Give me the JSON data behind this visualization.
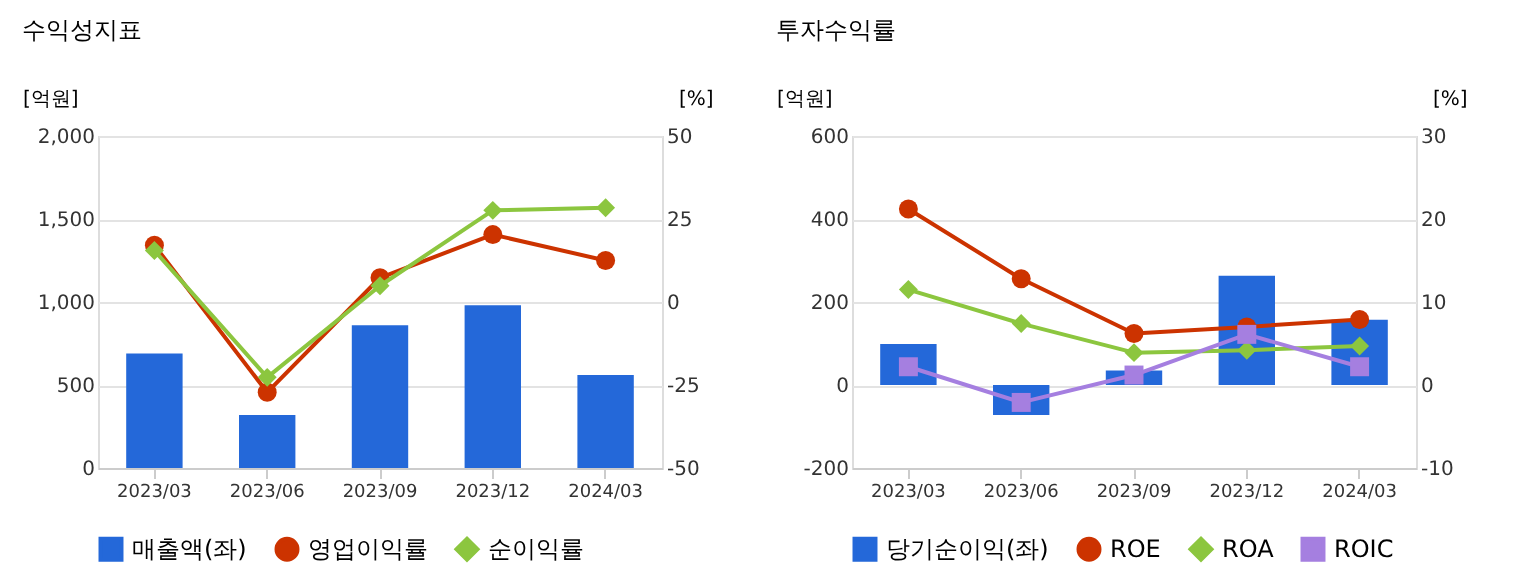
{
  "chart_data": [
    {
      "type": "bar",
      "title": "수익성지표",
      "ylabel": "[억원]",
      "y2label": "[%]",
      "categories": [
        "2023/03",
        "2023/06",
        "2023/09",
        "2023/12",
        "2024/03"
      ],
      "ylim": [
        0,
        2000
      ],
      "yticks": [
        {
          "value": 0,
          "label": "0"
        },
        {
          "value": 500,
          "label": "500"
        },
        {
          "value": 1000,
          "label": "1,000"
        },
        {
          "value": 1500,
          "label": "1,500"
        },
        {
          "value": 2000,
          "label": "2,000"
        }
      ],
      "y2lim": [
        -50,
        50
      ],
      "y2ticks": [
        -50,
        -25,
        0,
        25,
        50
      ],
      "grid": "y",
      "legend": "bottom",
      "series": [
        {
          "name": "매출액(좌)",
          "type": "bar",
          "color": "#2468d9",
          "values": [
            690,
            320,
            860,
            980,
            560
          ]
        },
        {
          "name": "영업이익률",
          "type": "line",
          "axis": "y2",
          "marker": "circle",
          "color": "#cc3300",
          "values": [
            17.1,
            -27.2,
            7.3,
            20.3,
            12.5
          ]
        },
        {
          "name": "순이익률",
          "type": "line",
          "axis": "y2",
          "marker": "diamond",
          "color": "#8cc63f",
          "values": [
            15.5,
            -22.7,
            4.9,
            27.6,
            28.4
          ]
        }
      ]
    },
    {
      "type": "bar",
      "title": "투자수익률",
      "ylabel": "[억원]",
      "y2label": "[%]",
      "categories": [
        "2023/03",
        "2023/06",
        "2023/09",
        "2023/12",
        "2024/03"
      ],
      "ylim": [
        -200,
        600
      ],
      "yticks": [
        -200,
        0,
        200,
        400,
        600
      ],
      "y2lim": [
        -10,
        30
      ],
      "y2ticks": [
        -10,
        0,
        10,
        20,
        30
      ],
      "grid": "y",
      "legend": "bottom",
      "series": [
        {
          "name": "당기순이익(좌)",
          "type": "bar",
          "color": "#2468d9",
          "values": [
            99,
            -72,
            35,
            263,
            157
          ]
        },
        {
          "name": "ROE",
          "type": "line",
          "axis": "y2",
          "marker": "circle",
          "color": "#cc3300",
          "values": [
            21.2,
            12.8,
            6.2,
            7.0,
            7.9
          ]
        },
        {
          "name": "ROA",
          "type": "line",
          "axis": "y2",
          "marker": "diamond",
          "color": "#8cc63f",
          "values": [
            11.5,
            7.4,
            3.9,
            4.2,
            4.7
          ]
        },
        {
          "name": "ROIC",
          "type": "line",
          "axis": "y2",
          "marker": "square",
          "color": "#a57fe0",
          "values": [
            2.2,
            -2.1,
            1.2,
            6.1,
            2.2
          ]
        }
      ]
    }
  ]
}
